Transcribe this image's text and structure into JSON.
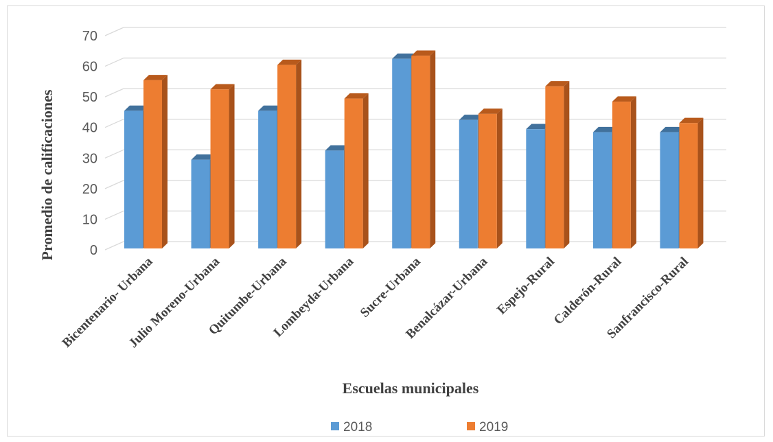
{
  "chart_data": {
    "type": "bar",
    "categories": [
      "Bicentenario- Urbana",
      "Julio Moreno-Urbana",
      "Quitumbe-Urbana",
      "Lombeyda-Urbana",
      "Sucre-Urbana",
      "Benalcázar-Urbana",
      "Espejo-Rural",
      "Calderón-Rural",
      "Sanfrancisco-Rural"
    ],
    "series": [
      {
        "name": "2018",
        "color": "#5b9bd5",
        "side_color": "#3f74a6",
        "top_color": "#41719c",
        "values": [
          45,
          29,
          45,
          32,
          62,
          42,
          39,
          38,
          38
        ]
      },
      {
        "name": "2019",
        "color": "#ed7d31",
        "side_color": "#a8521b",
        "top_color": "#b85a1c",
        "values": [
          55,
          52,
          60,
          49,
          63,
          44,
          53,
          48,
          41
        ]
      }
    ],
    "xlabel": "Escuelas municipales",
    "ylabel": "Promedio de calificaciones",
    "ylim": [
      0,
      70
    ],
    "yticks": [
      0,
      10,
      20,
      30,
      40,
      50,
      60,
      70
    ],
    "grid": true,
    "legend": "bottom",
    "style": "3d-column"
  }
}
